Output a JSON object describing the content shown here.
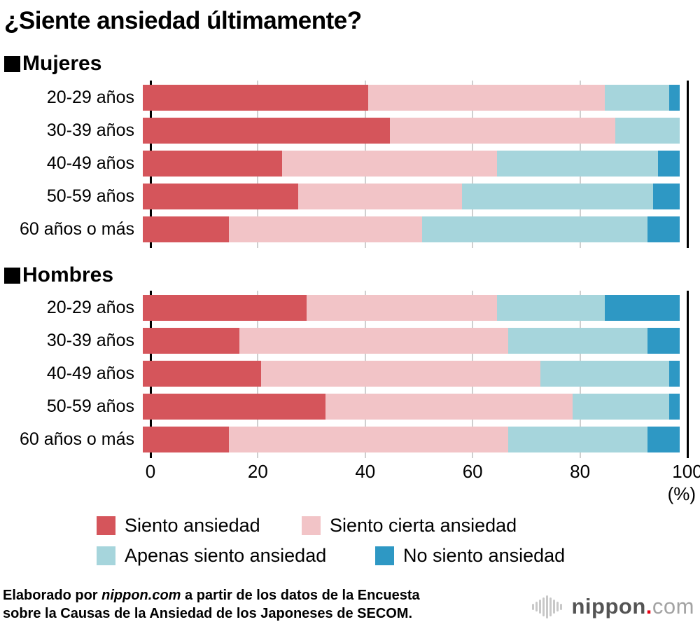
{
  "title": "¿Siente ansiedad últimamente?",
  "axis": {
    "tick_labels": [
      "0",
      "20",
      "40",
      "60",
      "80",
      "100"
    ],
    "unit_label": "(%)"
  },
  "legend": [
    {
      "label": "Siento ansiedad",
      "color": "#d5555b"
    },
    {
      "label": "Siento cierta ansiedad",
      "color": "#f2c4c7"
    },
    {
      "label": "Apenas siento ansiedad",
      "color": "#a6d5dc"
    },
    {
      "label": "No siento ansiedad",
      "color": "#2e98c4"
    }
  ],
  "footer": {
    "pre": "Elaborado por ",
    "brand": "nippon.com",
    "rest_line1": " a partir de los datos de la Encuesta",
    "line2": "sobre la Causas de la Ansiedad de los Japoneses de SECOM."
  },
  "logo": {
    "name": "nippon",
    "dot": ".",
    "tld": "com"
  },
  "chart_data": {
    "type": "bar",
    "orientation": "horizontal",
    "stacked": true,
    "title": "¿Siente ansiedad últimamente?",
    "unit": "%",
    "xlim": [
      0,
      100
    ],
    "xticks": [
      0,
      20,
      40,
      60,
      80,
      100
    ],
    "grid": "vertical",
    "legend_position": "bottom",
    "series_labels": [
      "Siento ansiedad",
      "Siento cierta ansiedad",
      "Apenas siento ansiedad",
      "No siento ansiedad"
    ],
    "series_colors": [
      "#d5555b",
      "#f2c4c7",
      "#a6d5dc",
      "#2e98c4"
    ],
    "groups": [
      {
        "label": "Mujeres",
        "categories": [
          "20-29 años",
          "30-39 años",
          "40-49 años",
          "50-59 años",
          "60 años o más"
        ],
        "rows": [
          [
            42,
            44,
            12,
            2
          ],
          [
            46,
            42,
            12,
            0
          ],
          [
            26,
            40,
            30,
            4
          ],
          [
            29,
            30.5,
            35.5,
            5
          ],
          [
            16,
            36,
            42,
            6
          ]
        ]
      },
      {
        "label": "Hombres",
        "categories": [
          "20-29 años",
          "30-39 años",
          "40-49 años",
          "50-59 años",
          "60 años o más"
        ],
        "rows": [
          [
            30.5,
            35.5,
            20,
            14
          ],
          [
            18,
            50,
            26,
            6
          ],
          [
            22,
            52,
            24,
            2
          ],
          [
            34,
            46,
            18,
            2
          ],
          [
            16,
            52,
            26,
            6
          ]
        ]
      }
    ]
  }
}
